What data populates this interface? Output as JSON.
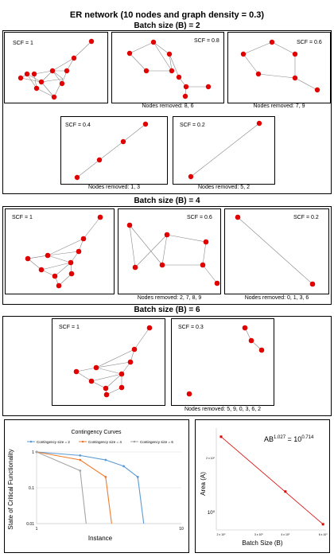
{
  "figure": {
    "title": "ER network (10 nodes and graph density = 0.3)"
  },
  "batches": [
    {
      "title": "Batch size (B) = 2",
      "panels": [
        {
          "scf": "SCF = 1",
          "caption": ""
        },
        {
          "scf": "SCF = 0.8",
          "caption": "Nodes removed: 8, 6"
        },
        {
          "scf": "SCF = 0.6",
          "caption": "Nodes removed: 7, 9"
        },
        {
          "scf": "SCF = 0.4",
          "caption": "Nodes removed: 1, 3"
        },
        {
          "scf": "SCF = 0.2",
          "caption": "Nodes removed: 5, 2"
        }
      ]
    },
    {
      "title": "Batch size (B) = 4",
      "panels": [
        {
          "scf": "SCF = 1",
          "caption": ""
        },
        {
          "scf": "SCF = 0.6",
          "caption": "Nodes removed: 2, 7, 8, 9"
        },
        {
          "scf": "SCF = 0.2",
          "caption": "Nodes removed: 0, 1, 3, 6"
        }
      ]
    },
    {
      "title": "Batch size (B) = 6",
      "panels": [
        {
          "scf": "SCF = 1",
          "caption": ""
        },
        {
          "scf": "SCF = 0.3",
          "caption": "Nodes removed: 5, 9, 0, 3, 6, 2"
        }
      ]
    }
  ],
  "colors": {
    "node": "#e00000",
    "edge": "#888888",
    "series_b2": "#5b9bd5",
    "series_b4": "#ed7d31",
    "series_b6": "#a5a5a5",
    "fit_line": "#e00000"
  },
  "chart_data": [
    {
      "type": "line",
      "title": "Contingency Curves",
      "xlabel": "Instance",
      "ylabel": "State of Critical Functionality",
      "xscale": "log",
      "yscale": "log",
      "xlim": [
        1,
        10
      ],
      "ylim": [
        0.01,
        1
      ],
      "x_ticks": [
        "1",
        "10"
      ],
      "y_ticks": [
        "1",
        "0.1",
        "0.01"
      ],
      "grid": true,
      "legend": "top",
      "series": [
        {
          "name": "Contingency size = 2",
          "x": [
            1,
            2,
            3,
            4,
            5,
            5.5
          ],
          "y": [
            1,
            0.8,
            0.6,
            0.4,
            0.2,
            0.01
          ]
        },
        {
          "name": "Contingency size = 4",
          "x": [
            1,
            2,
            3,
            3.3
          ],
          "y": [
            1,
            0.6,
            0.2,
            0.01
          ]
        },
        {
          "name": "Contingency size = 6",
          "x": [
            1,
            2,
            2.2
          ],
          "y": [
            1,
            0.3,
            0.01
          ]
        }
      ]
    },
    {
      "type": "scatter",
      "xlabel": "Batch Size (B)",
      "ylabel": "Area (A)",
      "xscale": "log",
      "yscale": "log",
      "x_ticks": [
        "2 x 10⁰",
        "3 x 10⁰",
        "4 x 10⁰",
        "6 x 10⁰"
      ],
      "y_ticks": [
        "2 x 10⁰",
        "10⁰"
      ],
      "equation": "AB^1.027 = 10^0.714",
      "grid": false,
      "points": [
        {
          "x": 2,
          "y": 2.6
        },
        {
          "x": 4,
          "y": 1.3
        },
        {
          "x": 6,
          "y": 0.86
        }
      ]
    }
  ]
}
